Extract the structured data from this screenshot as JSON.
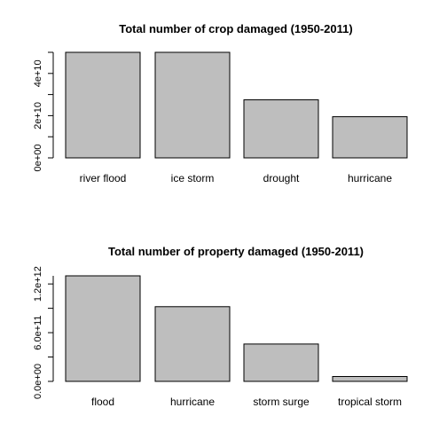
{
  "chart_data": [
    {
      "type": "bar",
      "title": "Total number of crop damaged (1950-2011)",
      "categories": [
        "river flood",
        "ice storm",
        "drought",
        "hurricane"
      ],
      "values": [
        50000000000,
        50000000000,
        27500000000,
        19500000000
      ],
      "ylim": [
        0,
        50000000000
      ],
      "yticks": [
        0,
        10000000000,
        20000000000,
        30000000000,
        40000000000,
        50000000000
      ],
      "ytick_labels": [
        "0e+00",
        "",
        "2e+10",
        "",
        "4e+10",
        ""
      ],
      "xlabel": "",
      "ylabel": "",
      "bar_color": "#bebebe",
      "grid": false
    },
    {
      "type": "bar",
      "title": "Total number of property damaged (1950-2011)",
      "categories": [
        "flood",
        "hurricane",
        "storm surge",
        "tropical storm"
      ],
      "values": [
        1300000000000,
        920000000000,
        460000000000,
        60000000000
      ],
      "ylim": [
        0,
        1300000000000
      ],
      "yticks": [
        0,
        300000000000,
        600000000000,
        900000000000,
        1200000000000
      ],
      "ytick_labels": [
        "0.0e+00",
        "",
        "6.0e+11",
        "",
        "1.2e+12"
      ],
      "xlabel": "",
      "ylabel": "",
      "bar_color": "#bebebe",
      "grid": false
    }
  ]
}
